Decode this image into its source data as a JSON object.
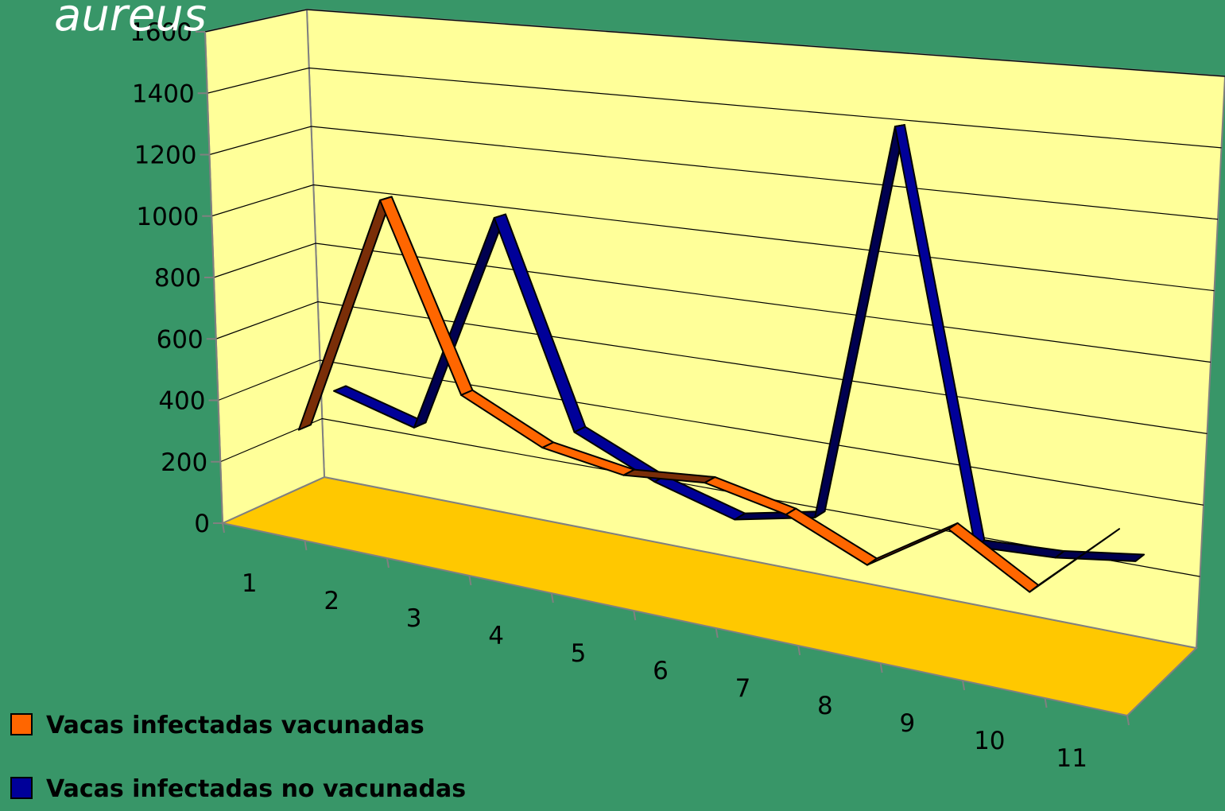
{
  "page": {
    "title_fragment": "aureus"
  },
  "colors": {
    "background": "#389668",
    "back_wall": "#ffff99",
    "floor": "#ffc800",
    "series_vacunadas": "#ff6600",
    "series_vacunadas_shade": "#7a2e08",
    "series_no_vacunadas": "#000099",
    "series_no_vacunadas_shade": "#000050",
    "gridline": "#000000"
  },
  "chart_data": {
    "type": "line",
    "style": "3d-ribbon",
    "x": [
      "1",
      "2",
      "3",
      "4",
      "5",
      "6",
      "7",
      "8",
      "9",
      "10",
      "11"
    ],
    "y_ticks": [
      "0",
      "200",
      "400",
      "600",
      "800",
      "1000",
      "1200",
      "1400",
      "1600"
    ],
    "ylim": [
      0,
      1600
    ],
    "grid": true,
    "legend_position": "bottom-left",
    "series": [
      {
        "name": "Vacas infectadas vacunadas",
        "color": "#ff6600",
        "values": [
          280,
          1060,
          480,
          360,
          320,
          340,
          290,
          190,
          330,
          200,
          390
        ]
      },
      {
        "name": "Vacas infectadas no vacunadas",
        "color": "#000099",
        "values": [
          360,
          285,
          1000,
          360,
          250,
          180,
          230,
          1400,
          230,
          240,
          270
        ]
      }
    ]
  },
  "legend": {
    "items": [
      {
        "label": "Vacas infectadas vacunadas",
        "color": "#ff6600"
      },
      {
        "label": "Vacas infectadas no vacunadas",
        "color": "#000099"
      }
    ]
  }
}
